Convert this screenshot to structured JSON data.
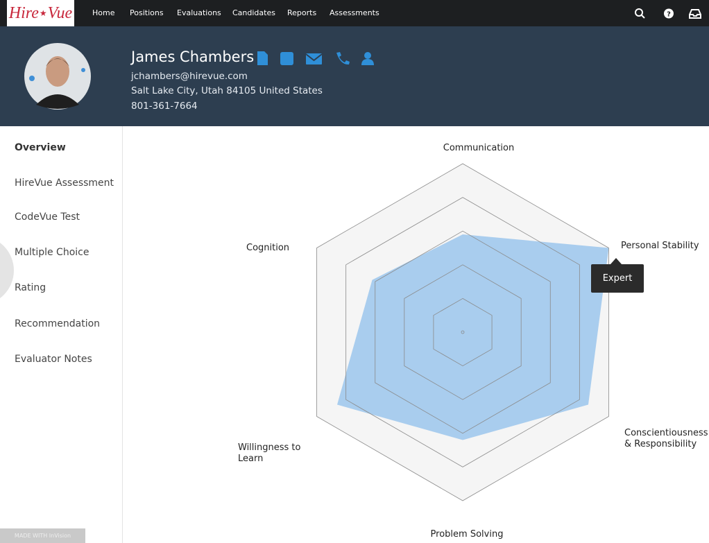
{
  "nav": {
    "logo": [
      "Hire",
      "Vue"
    ],
    "items": [
      "Home",
      "Positions",
      "Evaluations",
      "Candidates",
      "Reports",
      "Assessments"
    ]
  },
  "profile": {
    "name": "James Chambers",
    "email": "jchambers@hirevue.com",
    "address": "Salt Lake City, Utah 84105 United States",
    "phone": "801-361-7664"
  },
  "sidebar": {
    "items": [
      "Overview",
      "HireVue Assessment",
      "CodeVue Test",
      "Multiple Choice",
      "Rating",
      "Recommendation",
      "Evaluator Notes"
    ]
  },
  "chart_data": {
    "type": "radar",
    "categories": [
      "Communication",
      "Personal Stability",
      "Conscientiousness\n& Responsibility",
      "Problem Solving",
      "Willingness to\nLearn",
      "Cognition"
    ],
    "values": [
      2.9,
      5,
      4.3,
      3.2,
      4.3,
      3.1
    ],
    "rlim": [
      0,
      5
    ],
    "rticks": [
      1,
      2,
      3,
      4,
      5
    ],
    "color": "#a9cdee",
    "tooltip": "Expert"
  },
  "badge": {
    "text": "MADE WITH InVision"
  }
}
